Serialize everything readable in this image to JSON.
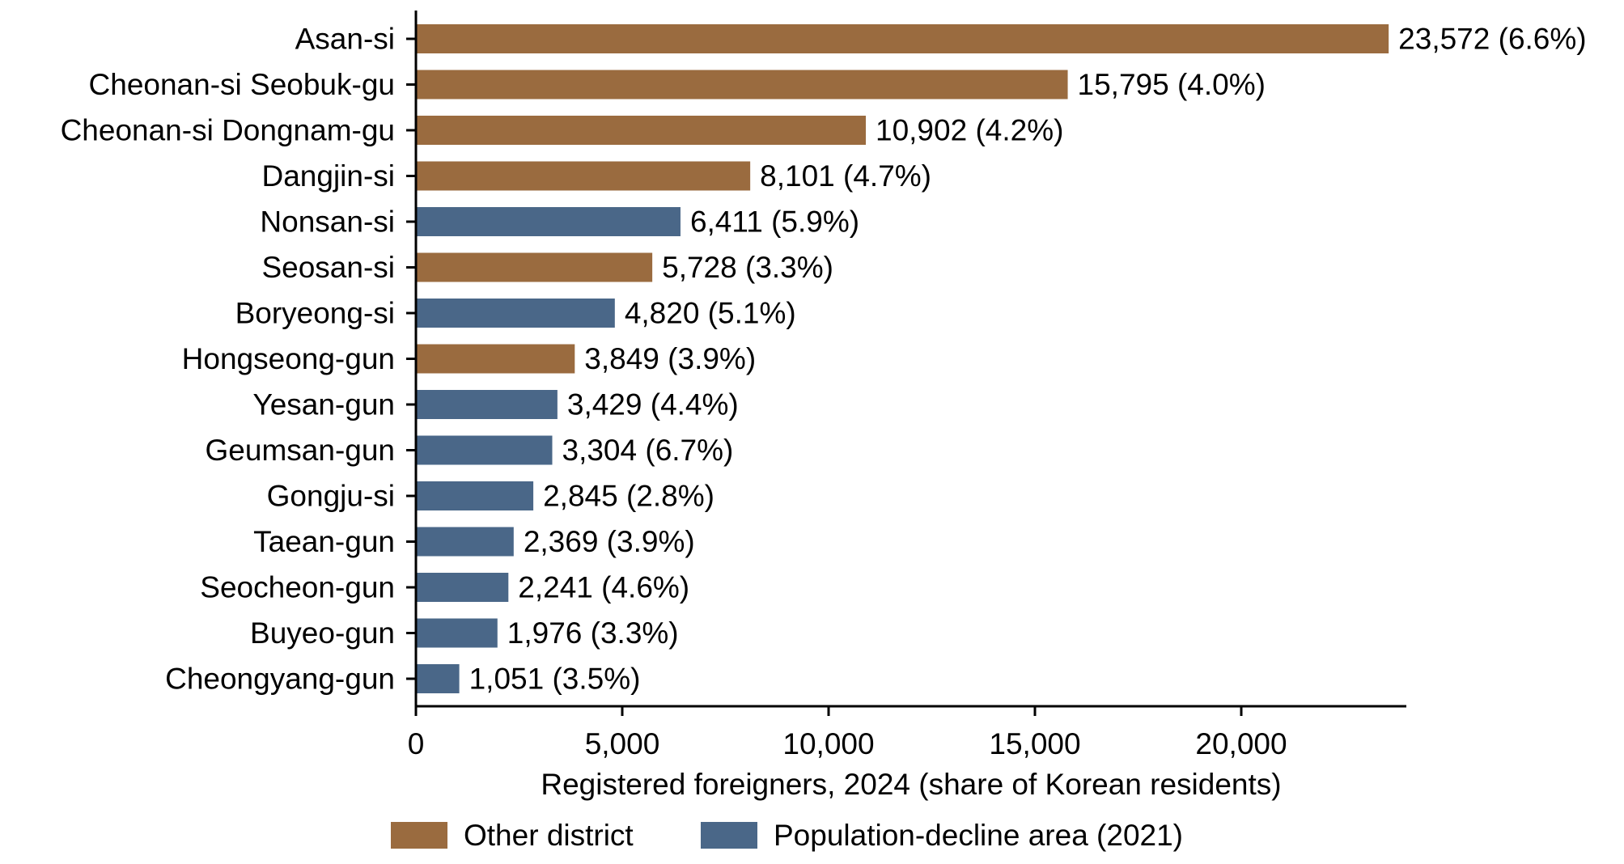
{
  "chart_data": {
    "type": "bar",
    "orientation": "horizontal",
    "xlabel": "Registered foreigners, 2024 (share of Korean residents)",
    "ylabel": "",
    "xlim": [
      0,
      24000
    ],
    "x_ticks": [
      0,
      5000,
      10000,
      15000,
      20000
    ],
    "x_tick_labels": [
      "0",
      "5,000",
      "10,000",
      "15,000",
      "20,000"
    ],
    "grid": false,
    "legend_position": "bottom",
    "groups": [
      {
        "key": "other",
        "name": "Other district",
        "color": "#9a6b3f"
      },
      {
        "key": "decline",
        "name": "Population-decline area (2021)",
        "color": "#4a6788"
      }
    ],
    "bars": [
      {
        "category": "Asan-si",
        "value": 23572,
        "label": "23,572 (6.6%)",
        "group": "other"
      },
      {
        "category": "Cheonan-si Seobuk-gu",
        "value": 15795,
        "label": "15,795 (4.0%)",
        "group": "other"
      },
      {
        "category": "Cheonan-si Dongnam-gu",
        "value": 10902,
        "label": "10,902 (4.2%)",
        "group": "other"
      },
      {
        "category": "Dangjin-si",
        "value": 8101,
        "label": "8,101 (4.7%)",
        "group": "other"
      },
      {
        "category": "Nonsan-si",
        "value": 6411,
        "label": "6,411 (5.9%)",
        "group": "decline"
      },
      {
        "category": "Seosan-si",
        "value": 5728,
        "label": "5,728 (3.3%)",
        "group": "other"
      },
      {
        "category": "Boryeong-si",
        "value": 4820,
        "label": "4,820 (5.1%)",
        "group": "decline"
      },
      {
        "category": "Hongseong-gun",
        "value": 3849,
        "label": "3,849 (3.9%)",
        "group": "other"
      },
      {
        "category": "Yesan-gun",
        "value": 3429,
        "label": "3,429 (4.4%)",
        "group": "decline"
      },
      {
        "category": "Geumsan-gun",
        "value": 3304,
        "label": "3,304 (6.7%)",
        "group": "decline"
      },
      {
        "category": "Gongju-si",
        "value": 2845,
        "label": "2,845 (2.8%)",
        "group": "decline"
      },
      {
        "category": "Taean-gun",
        "value": 2369,
        "label": "2,369 (3.9%)",
        "group": "decline"
      },
      {
        "category": "Seocheon-gun",
        "value": 2241,
        "label": "2,241 (4.6%)",
        "group": "decline"
      },
      {
        "category": "Buyeo-gun",
        "value": 1976,
        "label": "1,976 (3.3%)",
        "group": "decline"
      },
      {
        "category": "Cheongyang-gun",
        "value": 1051,
        "label": "1,051 (3.5%)",
        "group": "decline"
      }
    ]
  }
}
